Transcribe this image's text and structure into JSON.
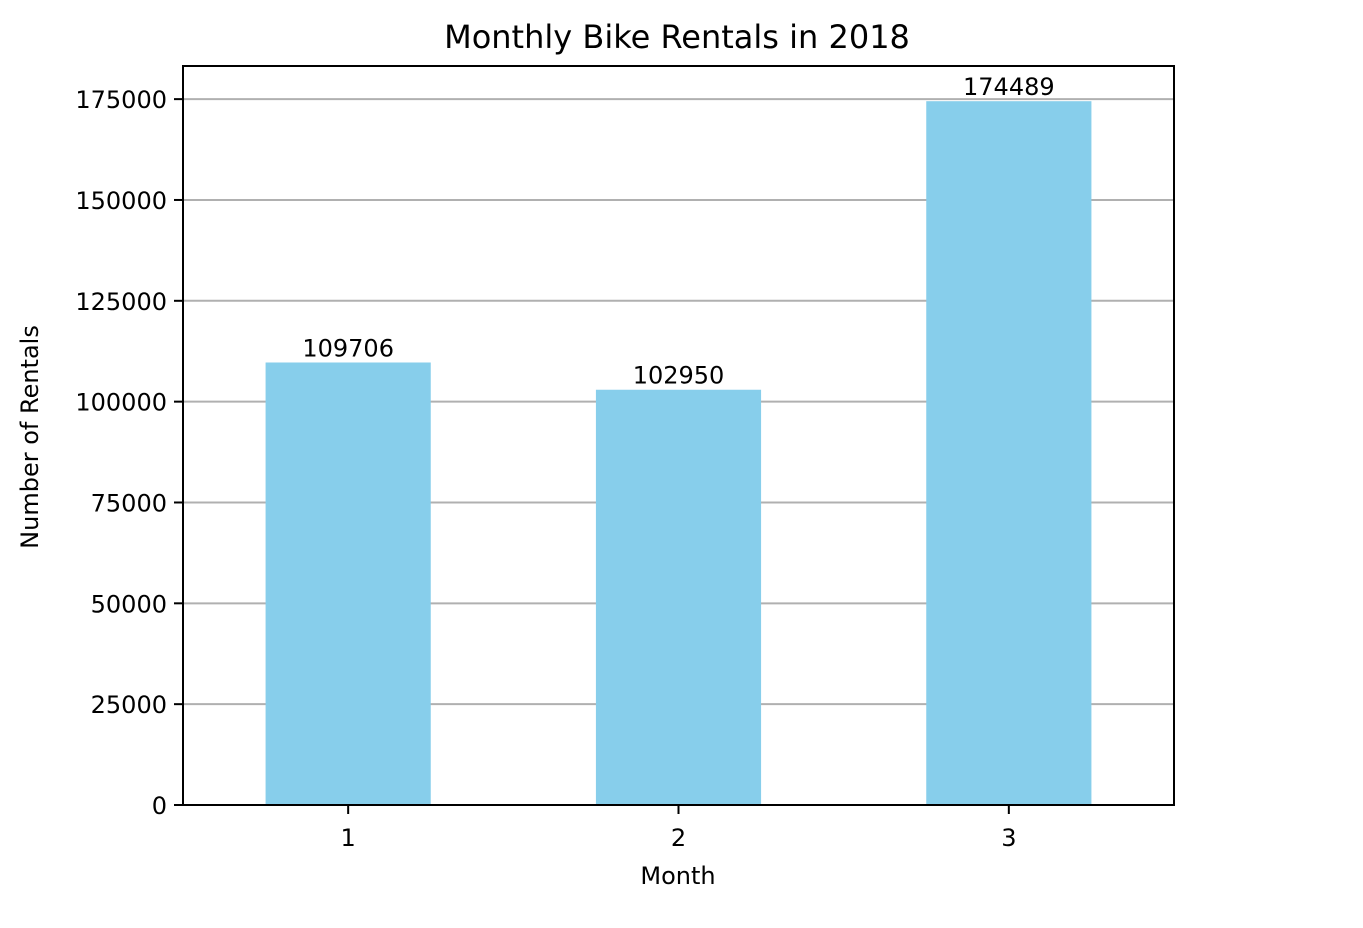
{
  "chart_data": {
    "type": "bar",
    "title": "Monthly Bike Rentals in 2018",
    "xlabel": "Month",
    "ylabel": "Number of Rentals",
    "categories": [
      "1",
      "2",
      "3"
    ],
    "values": [
      109706,
      102950,
      174489
    ],
    "data_labels": [
      "109706",
      "102950",
      "174489"
    ],
    "yticks": [
      0,
      25000,
      50000,
      75000,
      100000,
      125000,
      150000,
      175000
    ],
    "ytick_labels": [
      "0",
      "25000",
      "50000",
      "75000",
      "100000",
      "125000",
      "150000",
      "175000"
    ],
    "ylim": [
      0,
      183213
    ],
    "grid": "horizontal",
    "legend": "none",
    "colors": {
      "bar": "#87ceeb",
      "grid": "#b0b0b0",
      "axis": "#000000"
    }
  }
}
